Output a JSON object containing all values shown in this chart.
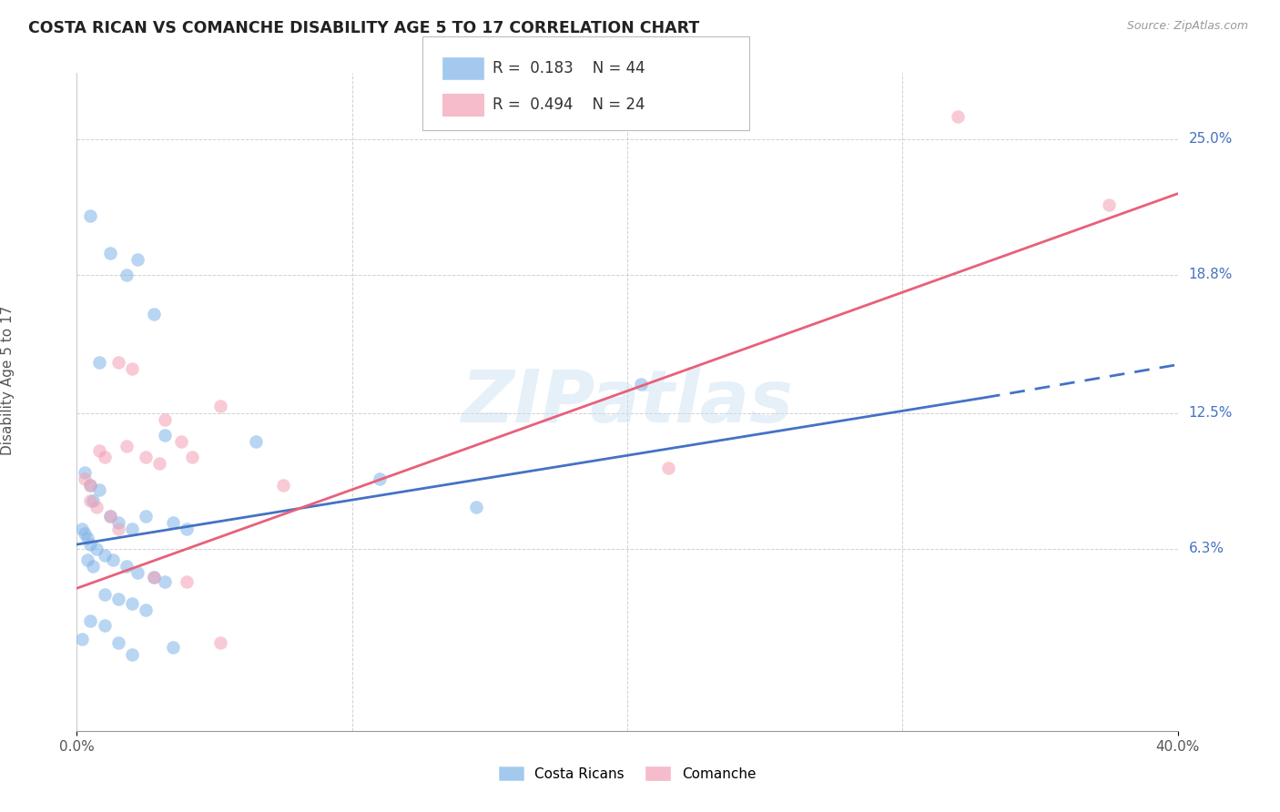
{
  "title": "COSTA RICAN VS COMANCHE DISABILITY AGE 5 TO 17 CORRELATION CHART",
  "source": "Source: ZipAtlas.com",
  "ylabel": "Disability Age 5 to 17",
  "xmin": 0.0,
  "xmax": 40.0,
  "ymin": -2.0,
  "ymax": 28.0,
  "yticks": [
    6.3,
    12.5,
    18.8,
    25.0
  ],
  "ytick_labels": [
    "6.3%",
    "12.5%",
    "18.8%",
    "25.0%"
  ],
  "legend_entries": [
    {
      "label": "Costa Ricans",
      "R": "0.183",
      "N": "44",
      "color": "#7eb3e8"
    },
    {
      "label": "Comanche",
      "R": "0.494",
      "N": "24",
      "color": "#f4a0b5"
    }
  ],
  "blue_color": "#7eb3e8",
  "pink_color": "#f4a0b5",
  "blue_line_color": "#4472c4",
  "pink_line_color": "#e8607a",
  "watermark": "ZIPatlas",
  "costa_rican_points": [
    [
      0.5,
      21.5
    ],
    [
      1.2,
      19.8
    ],
    [
      2.2,
      19.5
    ],
    [
      1.8,
      18.8
    ],
    [
      2.8,
      17.0
    ],
    [
      0.8,
      14.8
    ],
    [
      3.2,
      11.5
    ],
    [
      0.3,
      9.8
    ],
    [
      0.5,
      9.2
    ],
    [
      0.8,
      9.0
    ],
    [
      0.6,
      8.5
    ],
    [
      1.2,
      7.8
    ],
    [
      1.5,
      7.5
    ],
    [
      2.5,
      7.8
    ],
    [
      3.5,
      7.5
    ],
    [
      2.0,
      7.2
    ],
    [
      0.2,
      7.2
    ],
    [
      0.3,
      7.0
    ],
    [
      0.4,
      6.8
    ],
    [
      4.0,
      7.2
    ],
    [
      0.5,
      6.5
    ],
    [
      0.7,
      6.3
    ],
    [
      1.0,
      6.0
    ],
    [
      1.3,
      5.8
    ],
    [
      0.4,
      5.8
    ],
    [
      0.6,
      5.5
    ],
    [
      1.8,
      5.5
    ],
    [
      2.2,
      5.2
    ],
    [
      2.8,
      5.0
    ],
    [
      3.2,
      4.8
    ],
    [
      1.0,
      4.2
    ],
    [
      1.5,
      4.0
    ],
    [
      2.0,
      3.8
    ],
    [
      2.5,
      3.5
    ],
    [
      0.5,
      3.0
    ],
    [
      1.0,
      2.8
    ],
    [
      0.2,
      2.2
    ],
    [
      1.5,
      2.0
    ],
    [
      2.0,
      1.5
    ],
    [
      3.5,
      1.8
    ],
    [
      6.5,
      11.2
    ],
    [
      11.0,
      9.5
    ],
    [
      20.5,
      13.8
    ],
    [
      14.5,
      8.2
    ]
  ],
  "comanche_points": [
    [
      0.3,
      9.5
    ],
    [
      0.5,
      9.2
    ],
    [
      0.5,
      8.5
    ],
    [
      0.7,
      8.2
    ],
    [
      0.8,
      10.8
    ],
    [
      1.0,
      10.5
    ],
    [
      1.5,
      14.8
    ],
    [
      2.0,
      14.5
    ],
    [
      3.2,
      12.2
    ],
    [
      5.2,
      12.8
    ],
    [
      3.8,
      11.2
    ],
    [
      4.2,
      10.5
    ],
    [
      1.2,
      7.8
    ],
    [
      1.5,
      7.2
    ],
    [
      1.8,
      11.0
    ],
    [
      2.5,
      10.5
    ],
    [
      3.0,
      10.2
    ],
    [
      2.8,
      5.0
    ],
    [
      4.0,
      4.8
    ],
    [
      5.2,
      2.0
    ],
    [
      7.5,
      9.2
    ],
    [
      21.5,
      10.0
    ],
    [
      32.0,
      26.0
    ],
    [
      37.5,
      22.0
    ]
  ],
  "blue_line": {
    "x0": 0.0,
    "y0": 6.5,
    "x1": 33.0,
    "y1": 13.2
  },
  "blue_dash_line": {
    "x0": 33.0,
    "y0": 13.2,
    "x1": 40.0,
    "y1": 14.7
  },
  "pink_line": {
    "x0": 0.0,
    "y0": 4.5,
    "x1": 40.0,
    "y1": 22.5
  }
}
